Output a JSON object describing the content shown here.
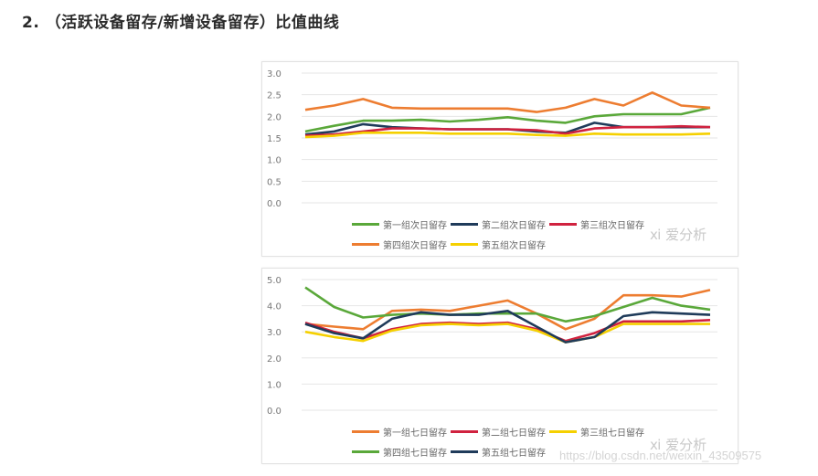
{
  "heading": "2. （活跃设备留存/新增设备留存）比值曲线",
  "watermark": {
    "logo": "爱分析",
    "url": "https://blog.csdn.net/weixin_43509575"
  },
  "chart_data": [
    {
      "type": "line",
      "title": "",
      "xlabel": "",
      "ylabel": "",
      "ylim": [
        0,
        3.0
      ],
      "yticks": [
        "0.0",
        "0.5",
        "1.0",
        "1.5",
        "2.0",
        "2.5",
        "3.0"
      ],
      "grid": true,
      "legend_position": "bottom",
      "x": [
        1,
        2,
        3,
        4,
        5,
        6,
        7,
        8,
        9,
        10,
        11,
        12,
        13,
        14,
        15
      ],
      "series": [
        {
          "name": "第一组次日留存",
          "color": "#5aa83a",
          "values": [
            1.65,
            1.78,
            1.9,
            1.9,
            1.92,
            1.88,
            1.92,
            1.98,
            1.9,
            1.85,
            2.0,
            2.05,
            2.05,
            2.05,
            2.2
          ]
        },
        {
          "name": "第二组次日留存",
          "color": "#1f3b5a",
          "values": [
            1.58,
            1.65,
            1.82,
            1.75,
            1.72,
            1.7,
            1.7,
            1.7,
            1.65,
            1.62,
            1.85,
            1.75,
            1.75,
            1.75,
            1.75
          ]
        },
        {
          "name": "第三组次日留存",
          "color": "#d0223f",
          "values": [
            1.55,
            1.58,
            1.65,
            1.72,
            1.72,
            1.7,
            1.7,
            1.7,
            1.68,
            1.6,
            1.72,
            1.75,
            1.75,
            1.77,
            1.75
          ]
        },
        {
          "name": "第四组次日留存",
          "color": "#ed7d31",
          "values": [
            2.15,
            2.25,
            2.4,
            2.2,
            2.18,
            2.18,
            2.18,
            2.18,
            2.1,
            2.2,
            2.4,
            2.25,
            2.55,
            2.25,
            2.2
          ]
        },
        {
          "name": "第五组次日留存",
          "color": "#f5d000",
          "values": [
            1.52,
            1.55,
            1.62,
            1.62,
            1.62,
            1.6,
            1.6,
            1.6,
            1.57,
            1.55,
            1.6,
            1.58,
            1.58,
            1.58,
            1.6
          ]
        }
      ]
    },
    {
      "type": "line",
      "title": "",
      "xlabel": "",
      "ylabel": "",
      "ylim": [
        0,
        5.0
      ],
      "yticks": [
        "0.0",
        "1.0",
        "2.0",
        "3.0",
        "4.0",
        "5.0"
      ],
      "grid": true,
      "legend_position": "bottom",
      "x": [
        1,
        2,
        3,
        4,
        5,
        6,
        7,
        8,
        9,
        10,
        11,
        12,
        13,
        14,
        15
      ],
      "series": [
        {
          "name": "第一组七日留存",
          "color": "#ed7d31",
          "values": [
            3.3,
            3.2,
            3.1,
            3.8,
            3.85,
            3.8,
            4.0,
            4.2,
            3.7,
            3.1,
            3.5,
            4.4,
            4.4,
            4.35,
            4.6
          ]
        },
        {
          "name": "第二组七日留存",
          "color": "#d0223f",
          "values": [
            3.35,
            3.0,
            2.75,
            3.1,
            3.3,
            3.35,
            3.3,
            3.35,
            3.1,
            2.65,
            2.95,
            3.4,
            3.4,
            3.4,
            3.45
          ]
        },
        {
          "name": "第三组七日留存",
          "color": "#f5d000",
          "values": [
            3.0,
            2.8,
            2.65,
            3.05,
            3.25,
            3.3,
            3.25,
            3.3,
            3.05,
            2.6,
            2.8,
            3.3,
            3.3,
            3.3,
            3.3
          ]
        },
        {
          "name": "第四组七日留存",
          "color": "#5aa83a",
          "values": [
            4.7,
            3.95,
            3.55,
            3.65,
            3.7,
            3.65,
            3.7,
            3.7,
            3.7,
            3.4,
            3.6,
            3.95,
            4.3,
            4.0,
            3.85
          ]
        },
        {
          "name": "第五组七日留存",
          "color": "#1f3b5a",
          "values": [
            3.3,
            2.95,
            2.75,
            3.5,
            3.75,
            3.65,
            3.65,
            3.8,
            3.2,
            2.6,
            2.8,
            3.6,
            3.75,
            3.7,
            3.65
          ]
        }
      ]
    }
  ]
}
